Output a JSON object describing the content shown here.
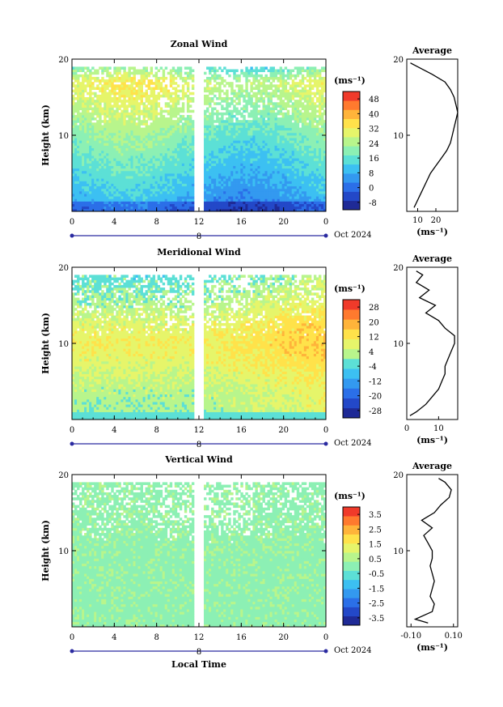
{
  "colors": {
    "zonal_palette": [
      "#1f2a96",
      "#2348c8",
      "#2b6fe8",
      "#3399f0",
      "#3cc0f2",
      "#5ce0d6",
      "#8cf0b4",
      "#b8f58c",
      "#e6f56a",
      "#ffe24a",
      "#ffb43a",
      "#ff7a2e",
      "#f03a2a"
    ],
    "meridional_palette": [
      "#1f2a96",
      "#2348c8",
      "#2b6fe8",
      "#3399f0",
      "#3cc0f2",
      "#5ce0d6",
      "#b8f58c",
      "#e6f56a",
      "#ffe24a",
      "#ffb43a",
      "#ff7a2e",
      "#f03a2a"
    ],
    "vertical_palette": [
      "#1f2a96",
      "#2348c8",
      "#2b6fe8",
      "#3399f0",
      "#3cc0f2",
      "#5ce0d6",
      "#8cf0b4",
      "#b8f58c",
      "#e6f56a",
      "#ffe24a",
      "#ffb43a",
      "#ff7a2e",
      "#f03a2a"
    ]
  },
  "chart_data": [
    {
      "type": "heatmap",
      "title": "Zonal Wind",
      "ylabel": "Height (km)",
      "xlabel": "",
      "xlim": [
        0,
        24
      ],
      "ylim": [
        0,
        20
      ],
      "x_ticks": [
        "0",
        "4",
        "8",
        "12",
        "16",
        "20",
        "0"
      ],
      "y_ticks": [
        "20",
        "10"
      ],
      "date_marker": "8",
      "date_label": "Oct 2024",
      "colorbar": {
        "unit": "(ms⁻¹)",
        "min": -8,
        "max": 52,
        "ticks": [
          "48",
          "40",
          "32",
          "24",
          "16",
          "8",
          "0",
          "-8"
        ]
      },
      "average": {
        "title": "Average",
        "xlabel": "(ms⁻¹)",
        "x_ticks": [
          "10",
          "20"
        ],
        "xlim": [
          4,
          32
        ],
        "y_ticks": [
          "20",
          "10"
        ],
        "heights": [
          0.5,
          1,
          2,
          3,
          4,
          5,
          6,
          7,
          8,
          9,
          10,
          11,
          12,
          13,
          14,
          15,
          16,
          17,
          18,
          19,
          19.5
        ],
        "values": [
          8,
          9,
          11,
          13,
          15,
          17,
          20,
          23,
          26,
          28,
          29,
          30,
          31,
          32,
          31,
          30,
          28,
          25,
          18,
          10,
          6
        ]
      }
    },
    {
      "type": "heatmap",
      "title": "Meridional Wind",
      "ylabel": "Height (km)",
      "xlabel": "",
      "xlim": [
        0,
        24
      ],
      "ylim": [
        0,
        20
      ],
      "x_ticks": [
        "0",
        "4",
        "8",
        "12",
        "16",
        "20",
        "0"
      ],
      "y_ticks": [
        "20",
        "10"
      ],
      "date_marker": "8",
      "date_label": "Oct 2024",
      "colorbar": {
        "unit": "(ms⁻¹)",
        "min": -28,
        "max": 28,
        "ticks": [
          "28",
          "20",
          "12",
          "4",
          "-4",
          "-12",
          "-20",
          "-28"
        ]
      },
      "average": {
        "title": "Average",
        "xlabel": "(ms⁻¹)",
        "x_ticks": [
          "0",
          "10"
        ],
        "xlim": [
          0,
          16
        ],
        "y_ticks": [
          "20",
          "10"
        ],
        "heights": [
          0.5,
          1,
          2,
          3,
          4,
          5,
          6,
          7,
          8,
          9,
          10,
          11,
          12,
          13,
          14,
          15,
          16,
          17,
          18,
          19,
          19.5
        ],
        "values": [
          1,
          3,
          6,
          8,
          10,
          11,
          12,
          12,
          13,
          14,
          15,
          15,
          12,
          10,
          6,
          9,
          4,
          7,
          3,
          5,
          3
        ]
      }
    },
    {
      "type": "heatmap",
      "title": "Vertical Wind",
      "ylabel": "Height (km)",
      "xlabel": "Local Time",
      "xlim": [
        0,
        24
      ],
      "ylim": [
        0,
        20
      ],
      "x_ticks": [
        "0",
        "4",
        "8",
        "12",
        "16",
        "20",
        "0"
      ],
      "y_ticks": [
        "20",
        "10"
      ],
      "date_marker": "8",
      "date_label": "Oct 2024",
      "colorbar": {
        "unit": "(ms⁻¹)",
        "min": -4,
        "max": 4,
        "ticks": [
          "3.5",
          "2.5",
          "1.5",
          "0.5",
          "-0.5",
          "-1.5",
          "-2.5",
          "-3.5"
        ]
      },
      "average": {
        "title": "Average",
        "xlabel": "(ms⁻¹)",
        "x_ticks": [
          "-0.10",
          "0.10"
        ],
        "xlim": [
          -0.12,
          0.12
        ],
        "y_ticks": [
          "20",
          "10"
        ],
        "heights": [
          0.5,
          1,
          2,
          3,
          4,
          5,
          6,
          7,
          8,
          9,
          10,
          11,
          12,
          13,
          14,
          15,
          16,
          17,
          18,
          19,
          19.5
        ],
        "values": [
          -0.02,
          -0.08,
          0.0,
          0.01,
          -0.01,
          0.0,
          0.01,
          0.0,
          -0.01,
          0.0,
          0.0,
          -0.02,
          -0.04,
          0.0,
          -0.05,
          0.01,
          0.04,
          0.08,
          0.09,
          0.06,
          0.03
        ]
      }
    }
  ]
}
